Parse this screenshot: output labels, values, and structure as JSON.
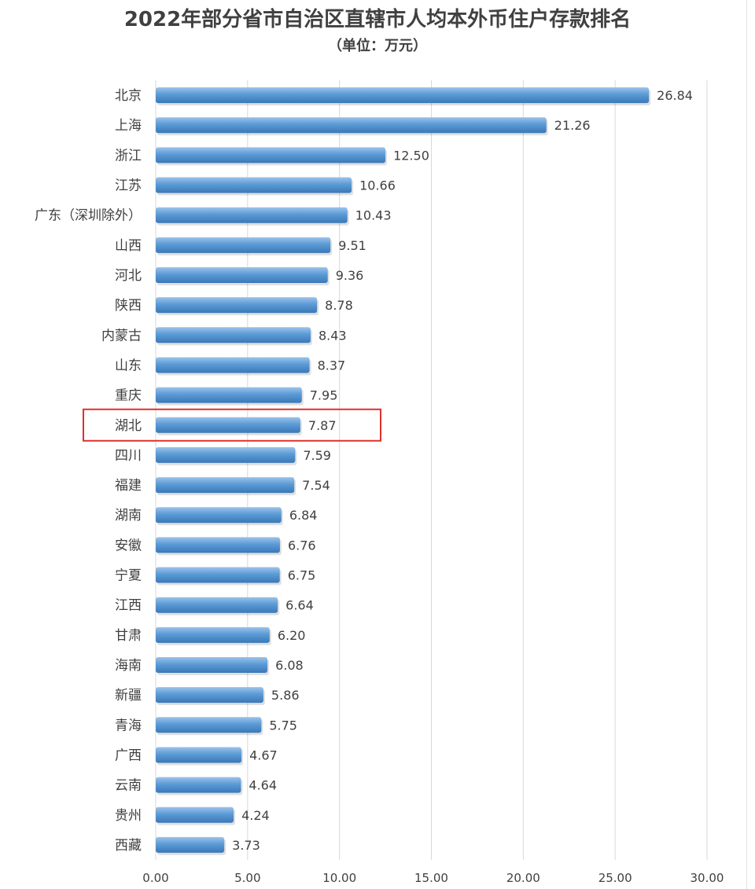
{
  "chart_data": {
    "type": "bar",
    "orientation": "horizontal",
    "title": "2022年部分省市自治区直辖市人均本外币住户存款排名",
    "subtitle": "（单位：万元）",
    "categories": [
      "北京",
      "上海",
      "浙江",
      "江苏",
      "广东（深圳除外）",
      "山西",
      "河北",
      "陕西",
      "内蒙古",
      "山东",
      "重庆",
      "湖北",
      "四川",
      "福建",
      "湖南",
      "安徽",
      "宁夏",
      "江西",
      "甘肃",
      "海南",
      "新疆",
      "青海",
      "广西",
      "云南",
      "贵州",
      "西藏"
    ],
    "values": [
      26.84,
      21.26,
      12.5,
      10.66,
      10.43,
      9.51,
      9.36,
      8.78,
      8.43,
      8.37,
      7.95,
      7.87,
      7.59,
      7.54,
      6.84,
      6.76,
      6.75,
      6.64,
      6.2,
      6.08,
      5.86,
      5.75,
      4.67,
      4.64,
      4.24,
      3.73
    ],
    "value_labels": [
      "26.84",
      "21.26",
      "12.50",
      "10.66",
      "10.43",
      "9.51",
      "9.36",
      "8.78",
      "8.43",
      "8.37",
      "7.95",
      "7.87",
      "7.59",
      "7.54",
      "6.84",
      "6.76",
      "6.75",
      "6.64",
      "6.20",
      "6.08",
      "5.86",
      "5.75",
      "4.67",
      "4.64",
      "4.24",
      "3.73"
    ],
    "x_ticks": [
      "0.00",
      "5.00",
      "10.00",
      "15.00",
      "20.00",
      "25.00",
      "30.00"
    ],
    "xlim": [
      0,
      30
    ],
    "grid": "vertical",
    "legend": "none",
    "highlighted_category": "湖北",
    "colors": {
      "bar": "#5b9bd5",
      "bar_light": "#9cc3ea",
      "bar_dark": "#3a78b8",
      "highlight_box": "#e0302c",
      "grid": "#d9d9d9",
      "text": "#404040"
    }
  }
}
